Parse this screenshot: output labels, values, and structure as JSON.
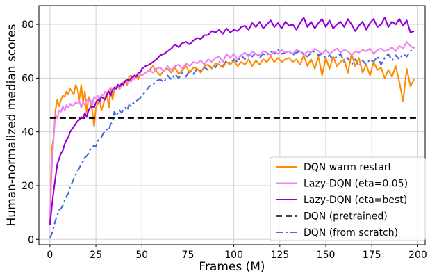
{
  "chart_data": {
    "type": "line",
    "xlabel": "Frames (M)",
    "ylabel": "Human-normalized median scores",
    "xlim": [
      -6,
      204
    ],
    "ylim": [
      -2,
      87
    ],
    "xticks": [
      0,
      25,
      50,
      75,
      100,
      125,
      150,
      175,
      200
    ],
    "yticks": [
      0,
      20,
      40,
      60,
      80
    ],
    "grid": true,
    "legend_position": "bottom-right",
    "series": [
      {
        "name": "DQN warm restart",
        "color": "#ff8c00",
        "style": "solid",
        "x": [
          0,
          1,
          2,
          3,
          4,
          5,
          6,
          7,
          8,
          9,
          10,
          11,
          12,
          13,
          14,
          15,
          16,
          17,
          18,
          19,
          20,
          21,
          22,
          23,
          24,
          25,
          26,
          27,
          28,
          29,
          30,
          31,
          32,
          33,
          34,
          35,
          36,
          37,
          38,
          39,
          40,
          41,
          42,
          43,
          44,
          45,
          46,
          47,
          48,
          49,
          50,
          52,
          54,
          56,
          58,
          60,
          62,
          64,
          66,
          68,
          70,
          72,
          74,
          76,
          78,
          80,
          82,
          84,
          86,
          88,
          90,
          92,
          94,
          96,
          98,
          100,
          102,
          104,
          106,
          108,
          110,
          112,
          114,
          116,
          118,
          120,
          122,
          124,
          126,
          128,
          130,
          132,
          134,
          136,
          138,
          140,
          142,
          144,
          146,
          148,
          150,
          152,
          154,
          156,
          158,
          160,
          162,
          164,
          166,
          168,
          170,
          172,
          174,
          176,
          178,
          180,
          182,
          184,
          186,
          188,
          190,
          192,
          194,
          196,
          198
        ],
        "y": [
          5.5,
          33.5,
          38.0,
          48.0,
          52.0,
          49.5,
          52.0,
          53.5,
          53.0,
          55.0,
          54.0,
          56.0,
          55.0,
          54.0,
          57.5,
          56.0,
          52.0,
          57.5,
          51.0,
          55.0,
          47.0,
          53.0,
          51.0,
          48.0,
          42.0,
          49.0,
          50.5,
          52.0,
          48.0,
          50.0,
          53.0,
          54.0,
          49.0,
          56.5,
          52.0,
          55.5,
          57.0,
          56.5,
          56.0,
          58.0,
          58.5,
          59.0,
          57.5,
          60.5,
          61.0,
          60.0,
          60.5,
          61.0,
          59.5,
          61.5,
          61.0,
          62.0,
          63.0,
          64.5,
          62.5,
          61.0,
          63.0,
          63.5,
          62.0,
          64.0,
          61.5,
          63.0,
          64.5,
          62.0,
          64.0,
          63.5,
          62.0,
          64.5,
          65.0,
          63.5,
          65.5,
          65.0,
          64.0,
          66.0,
          65.0,
          66.5,
          64.5,
          66.0,
          65.0,
          67.0,
          64.5,
          66.5,
          65.0,
          67.0,
          66.0,
          68.0,
          66.0,
          67.5,
          66.0,
          67.0,
          67.5,
          66.0,
          67.0,
          65.0,
          68.5,
          64.5,
          67.0,
          63.5,
          68.0,
          61.0,
          67.5,
          63.5,
          68.0,
          64.5,
          66.0,
          67.0,
          62.0,
          69.0,
          64.5,
          67.5,
          62.0,
          65.0,
          61.0,
          66.0,
          63.0,
          64.0,
          60.0,
          63.0,
          60.5,
          64.5,
          58.5,
          51.5,
          63.5,
          57.0,
          59.5
        ]
      },
      {
        "name": "Lazy-DQN (eta=0.05)",
        "color": "#ee82ee",
        "style": "solid",
        "x": [
          0,
          1,
          2,
          3,
          4,
          5,
          6,
          7,
          8,
          9,
          10,
          11,
          12,
          13,
          14,
          15,
          16,
          17,
          18,
          19,
          20,
          21,
          22,
          23,
          24,
          25,
          26,
          27,
          28,
          29,
          30,
          31,
          32,
          33,
          34,
          35,
          36,
          37,
          38,
          39,
          40,
          41,
          42,
          43,
          44,
          45,
          46,
          47,
          48,
          49,
          50,
          52,
          54,
          56,
          58,
          60,
          62,
          64,
          66,
          68,
          70,
          72,
          74,
          76,
          78,
          80,
          82,
          84,
          86,
          88,
          90,
          92,
          94,
          96,
          98,
          100,
          102,
          104,
          106,
          108,
          110,
          112,
          114,
          116,
          118,
          120,
          122,
          124,
          126,
          128,
          130,
          132,
          134,
          136,
          138,
          140,
          142,
          144,
          146,
          148,
          150,
          152,
          154,
          156,
          158,
          160,
          162,
          164,
          166,
          168,
          170,
          172,
          174,
          176,
          178,
          180,
          182,
          184,
          186,
          188,
          190,
          192,
          194,
          196,
          198
        ],
        "y": [
          8.0,
          26.0,
          38.0,
          46.5,
          45.0,
          48.0,
          47.5,
          49.5,
          48.0,
          50.0,
          49.0,
          50.5,
          49.5,
          50.0,
          51.0,
          50.5,
          51.5,
          49.0,
          51.0,
          50.0,
          52.0,
          51.5,
          52.0,
          50.0,
          53.0,
          52.5,
          53.5,
          52.0,
          54.0,
          53.5,
          55.0,
          54.5,
          55.5,
          56.5,
          55.5,
          56.5,
          57.0,
          57.5,
          56.0,
          58.0,
          57.5,
          59.0,
          58.5,
          59.5,
          58.5,
          60.0,
          59.5,
          61.0,
          60.5,
          61.5,
          61.0,
          62.0,
          63.0,
          62.0,
          63.5,
          64.0,
          62.5,
          64.5,
          63.0,
          64.5,
          65.0,
          63.5,
          65.5,
          64.5,
          66.0,
          65.5,
          66.5,
          65.0,
          67.0,
          66.0,
          67.5,
          68.0,
          66.0,
          69.0,
          67.5,
          69.0,
          67.0,
          68.5,
          69.5,
          68.0,
          70.0,
          69.0,
          68.5,
          70.0,
          69.5,
          68.5,
          70.0,
          69.0,
          70.5,
          69.5,
          70.0,
          69.0,
          70.5,
          70.0,
          68.5,
          70.0,
          69.5,
          71.0,
          70.0,
          69.0,
          70.5,
          69.0,
          70.0,
          71.0,
          69.5,
          70.5,
          70.0,
          68.5,
          70.0,
          69.5,
          70.5,
          70.0,
          71.0,
          69.0,
          70.5,
          71.0,
          70.0,
          70.5,
          71.5,
          70.0,
          72.0,
          71.0,
          73.5,
          72.0,
          71.0
        ]
      },
      {
        "name": "Lazy-DQN (eta=best)",
        "color": "#9400d3",
        "style": "solid",
        "x": [
          0,
          1,
          2,
          3,
          4,
          5,
          6,
          7,
          8,
          9,
          10,
          11,
          12,
          13,
          14,
          15,
          16,
          17,
          18,
          19,
          20,
          21,
          22,
          23,
          24,
          25,
          26,
          27,
          28,
          29,
          30,
          31,
          32,
          33,
          34,
          35,
          36,
          37,
          38,
          39,
          40,
          41,
          42,
          43,
          44,
          45,
          46,
          47,
          48,
          49,
          50,
          52,
          54,
          56,
          58,
          60,
          62,
          64,
          66,
          68,
          70,
          72,
          74,
          76,
          78,
          80,
          82,
          84,
          86,
          88,
          90,
          92,
          94,
          96,
          98,
          100,
          102,
          104,
          106,
          108,
          110,
          112,
          114,
          116,
          118,
          120,
          122,
          124,
          126,
          128,
          130,
          132,
          134,
          136,
          138,
          140,
          142,
          144,
          146,
          148,
          150,
          152,
          154,
          156,
          158,
          160,
          162,
          164,
          166,
          168,
          170,
          172,
          174,
          176,
          178,
          180,
          182,
          184,
          186,
          188,
          190,
          192,
          194,
          196,
          198
        ],
        "y": [
          5.5,
          12.0,
          18.0,
          23.0,
          28.0,
          30.0,
          32.0,
          33.0,
          35.5,
          37.0,
          38.0,
          40.0,
          41.0,
          42.0,
          43.0,
          44.0,
          44.5,
          45.5,
          45.0,
          47.0,
          45.5,
          48.0,
          49.0,
          49.5,
          49.0,
          51.0,
          52.0,
          51.5,
          53.0,
          52.5,
          52.0,
          54.0,
          55.0,
          53.5,
          55.5,
          56.5,
          56.0,
          57.5,
          57.0,
          58.0,
          57.5,
          59.0,
          59.5,
          59.0,
          60.0,
          60.5,
          61.0,
          60.5,
          62.0,
          62.0,
          63.5,
          64.5,
          65.0,
          66.0,
          67.0,
          68.5,
          69.0,
          70.0,
          71.0,
          72.5,
          71.5,
          73.0,
          73.5,
          72.5,
          74.0,
          75.0,
          74.5,
          76.0,
          76.0,
          77.5,
          77.0,
          78.0,
          76.5,
          78.5,
          77.0,
          78.0,
          77.5,
          79.0,
          79.5,
          78.0,
          80.5,
          79.0,
          81.0,
          78.5,
          80.0,
          81.5,
          79.0,
          80.5,
          78.5,
          81.0,
          79.5,
          80.0,
          78.0,
          80.5,
          82.5,
          79.0,
          81.0,
          78.5,
          80.5,
          82.0,
          79.0,
          81.5,
          78.5,
          80.0,
          81.0,
          79.0,
          82.0,
          80.0,
          77.5,
          79.5,
          81.0,
          78.0,
          80.5,
          82.0,
          79.0,
          80.0,
          82.5,
          79.0,
          81.0,
          80.0,
          82.0,
          79.5,
          81.5,
          77.0,
          77.5
        ]
      },
      {
        "name": "DQN (pretrained)",
        "color": "#000000",
        "style": "dashed",
        "x": [
          0,
          200
        ],
        "y": [
          45.2,
          45.2
        ]
      },
      {
        "name": "DQN (from scratch)",
        "color": "#4169e1",
        "style": "dashdot",
        "x": [
          0,
          1,
          2,
          3,
          4,
          5,
          6,
          7,
          8,
          9,
          10,
          11,
          12,
          13,
          14,
          15,
          16,
          17,
          18,
          19,
          20,
          21,
          22,
          23,
          24,
          25,
          26,
          27,
          28,
          29,
          30,
          31,
          32,
          33,
          34,
          35,
          36,
          37,
          38,
          39,
          40,
          41,
          42,
          43,
          44,
          45,
          46,
          47,
          48,
          49,
          50,
          52,
          54,
          56,
          58,
          60,
          62,
          64,
          66,
          68,
          70,
          72,
          74,
          76,
          78,
          80,
          82,
          84,
          86,
          88,
          90,
          92,
          94,
          96,
          98,
          100,
          102,
          104,
          106,
          108,
          110,
          112,
          114,
          116,
          118,
          120,
          122,
          124,
          126,
          128,
          130,
          132,
          134,
          136,
          138,
          140,
          142,
          144,
          146,
          148,
          150,
          152,
          154,
          156,
          158,
          160,
          162,
          164,
          166,
          168,
          170,
          172,
          174,
          176,
          178,
          180,
          182,
          184,
          186,
          188,
          190,
          192,
          194,
          196,
          198
        ],
        "y": [
          0.5,
          2.0,
          4.5,
          7.0,
          9.0,
          11.0,
          11.5,
          12.5,
          14.5,
          16.0,
          17.0,
          19.5,
          21.0,
          22.5,
          24.0,
          25.5,
          26.5,
          28.0,
          29.0,
          30.5,
          31.0,
          32.0,
          33.5,
          34.0,
          35.0,
          34.5,
          36.5,
          37.5,
          38.0,
          39.5,
          40.0,
          41.0,
          40.5,
          43.0,
          43.5,
          47.5,
          46.0,
          47.0,
          48.0,
          47.0,
          48.5,
          49.0,
          48.0,
          50.0,
          49.5,
          50.5,
          51.0,
          51.5,
          52.0,
          52.5,
          53.5,
          55.0,
          57.0,
          57.5,
          59.0,
          59.5,
          58.5,
          61.0,
          59.5,
          61.5,
          60.0,
          62.0,
          60.5,
          63.0,
          61.5,
          63.5,
          62.5,
          64.0,
          63.0,
          65.0,
          64.0,
          66.0,
          64.5,
          66.5,
          65.5,
          67.0,
          66.0,
          68.5,
          67.0,
          69.0,
          68.0,
          69.5,
          67.5,
          69.0,
          68.5,
          70.0,
          69.0,
          70.5,
          69.0,
          69.5,
          70.0,
          68.5,
          69.5,
          70.0,
          69.0,
          68.0,
          69.5,
          70.0,
          68.5,
          69.0,
          67.5,
          68.5,
          67.0,
          68.0,
          69.0,
          66.0,
          67.5,
          65.0,
          67.0,
          64.5,
          66.5,
          65.0,
          67.0,
          66.0,
          68.0,
          65.0,
          67.5,
          69.0,
          66.5,
          68.5,
          67.0,
          69.0,
          68.0,
          70.0,
          71.5
        ]
      }
    ]
  }
}
